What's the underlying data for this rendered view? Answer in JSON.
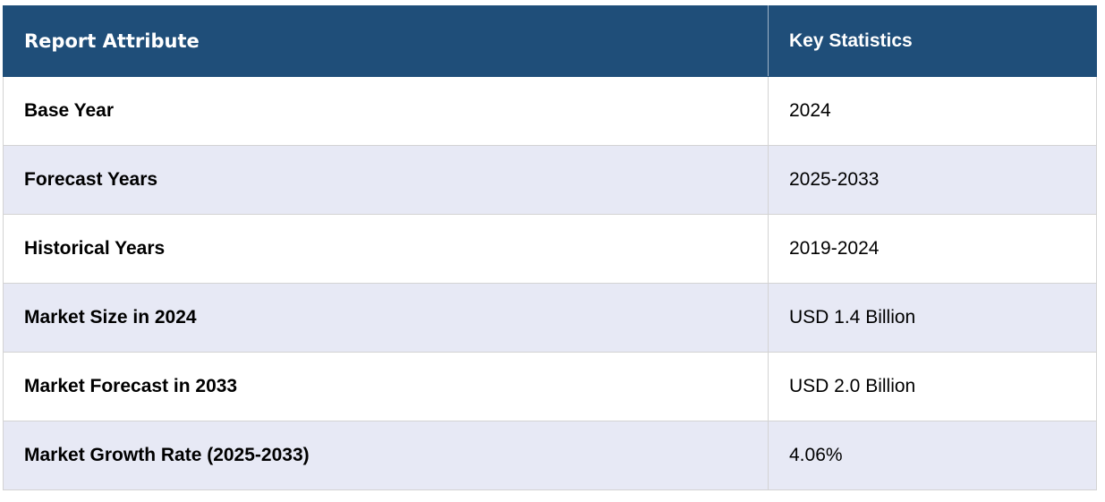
{
  "table": {
    "headers": [
      "Report Attribute",
      "Key Statistics"
    ],
    "rows": [
      {
        "attribute": "Base Year",
        "value": "2024"
      },
      {
        "attribute": "Forecast Years",
        "value": "2025-2033"
      },
      {
        "attribute": "Historical Years",
        "value": "2019-2024"
      },
      {
        "attribute": "Market Size in 2024",
        "value": "USD 1.4 Billion"
      },
      {
        "attribute": "Market Forecast in 2033",
        "value": "USD 2.0 Billion"
      },
      {
        "attribute": "Market Growth Rate (2025-2033)",
        "value": "4.06%"
      }
    ]
  },
  "colors": {
    "header_bg": "#1f4e79",
    "header_text": "#ffffff",
    "row_alt_bg": "#e7e9f5",
    "row_bg": "#ffffff",
    "border": "#d3d3d3"
  }
}
